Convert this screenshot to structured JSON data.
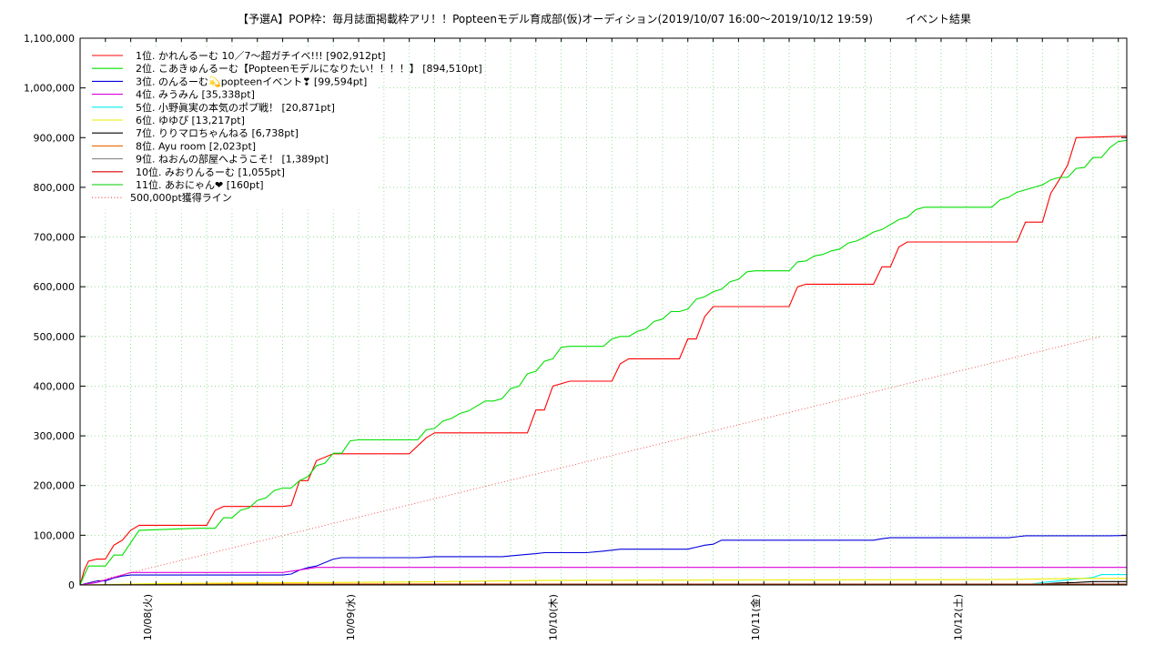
{
  "chart_data": {
    "type": "line",
    "title": "【予選A】POP枠：毎月誌面掲載枠アリ！！Popteenモデル育成部(仮)オーディション(2019/10/07 16:00〜2019/10/12 19:59)　　　イベント結果",
    "xlabel": "",
    "ylabel": "",
    "x_unit": "hours since 2019/10/07 16:00",
    "xlim": [
      0,
      124
    ],
    "ylim": [
      0,
      1100000
    ],
    "y_ticks": [
      0,
      100000,
      200000,
      300000,
      400000,
      500000,
      600000,
      700000,
      800000,
      900000,
      1000000,
      1100000
    ],
    "y_tick_labels": [
      "0",
      "100,000",
      "200,000",
      "300,000",
      "400,000",
      "500,000",
      "600,000",
      "700,000",
      "800,000",
      "900,000",
      "1,000,000",
      "1,100,000"
    ],
    "x_ticks": [
      8,
      32,
      56,
      80,
      104
    ],
    "x_tick_labels": [
      "10/08(火)",
      "10/09(水)",
      "10/10(木)",
      "10/11(金)",
      "10/12(土)"
    ],
    "grid": true,
    "legend_position": "top-left",
    "series": [
      {
        "name": "1位. かれんるーむ 10／7〜超ガチイベ!!! [902,912pt]",
        "color": "#ff0000",
        "x": [
          0,
          0.5,
          1,
          2,
          3,
          4,
          5,
          6,
          7,
          13,
          15,
          16,
          17,
          24,
          25,
          26,
          27,
          28,
          30,
          31,
          32,
          39,
          41,
          42,
          45,
          53,
          54,
          55,
          56,
          58,
          62,
          63,
          64,
          65,
          71,
          72,
          73,
          74,
          75,
          76,
          84,
          85,
          86,
          87,
          94,
          95,
          96,
          97,
          98,
          103,
          111,
          112,
          113,
          114,
          115,
          116,
          117,
          118,
          124
        ],
        "y": [
          0,
          30000,
          48000,
          52000,
          52000,
          80000,
          90000,
          110000,
          120000,
          120000,
          120000,
          150000,
          158000,
          158000,
          160000,
          210000,
          210000,
          250000,
          264000,
          264000,
          264000,
          264000,
          296000,
          306000,
          306000,
          306000,
          352000,
          352000,
          400000,
          410000,
          410000,
          410000,
          445000,
          455000,
          455000,
          495000,
          495000,
          540000,
          560000,
          560000,
          560000,
          600000,
          605000,
          605000,
          605000,
          640000,
          640000,
          680000,
          690000,
          690000,
          690000,
          730000,
          730000,
          730000,
          788000,
          815000,
          845000,
          900000,
          902912
        ]
      },
      {
        "name": "2位. こあきゅんるーむ【Popteenモデルになりたい！！！！】 [894,510pt]",
        "color": "#00e000",
        "x": [
          0,
          0.5,
          1,
          2,
          3,
          4,
          5,
          6,
          7,
          14,
          16,
          17,
          18,
          19,
          20,
          21,
          22,
          23,
          24,
          25,
          26,
          27,
          28,
          29,
          30,
          31,
          32,
          33,
          34,
          35,
          38,
          40,
          41,
          42,
          43,
          44,
          45,
          46,
          47,
          48,
          49,
          50,
          51,
          52,
          53,
          54,
          55,
          56,
          57,
          58,
          59,
          60,
          61,
          62,
          63,
          64,
          65,
          66,
          67,
          68,
          69,
          70,
          71,
          72,
          73,
          74,
          75,
          76,
          77,
          78,
          79,
          80,
          81,
          82,
          83,
          84,
          85,
          86,
          87,
          88,
          89,
          90,
          91,
          92,
          93,
          94,
          95,
          96,
          97,
          98,
          99,
          100,
          101,
          102,
          103,
          104,
          105,
          106,
          107,
          108,
          109,
          110,
          111,
          112,
          113,
          114,
          115,
          116,
          117,
          118,
          119,
          120,
          121,
          122,
          123,
          124
        ],
        "y": [
          0,
          20000,
          38000,
          38000,
          38000,
          60000,
          60000,
          85000,
          110000,
          114000,
          114000,
          135000,
          135000,
          150000,
          155000,
          170000,
          175000,
          190000,
          195000,
          195000,
          210000,
          218000,
          240000,
          245000,
          265000,
          265000,
          290000,
          292000,
          292000,
          292000,
          292000,
          292000,
          312000,
          315000,
          330000,
          335000,
          345000,
          350000,
          360000,
          370000,
          370000,
          375000,
          395000,
          400000,
          425000,
          430000,
          450000,
          455000,
          478000,
          480000,
          480000,
          480000,
          480000,
          480000,
          495000,
          500000,
          500000,
          510000,
          515000,
          530000,
          535000,
          550000,
          550000,
          555000,
          575000,
          580000,
          590000,
          595000,
          610000,
          615000,
          630000,
          632000,
          632000,
          632000,
          632000,
          632000,
          650000,
          652000,
          662000,
          665000,
          672000,
          676000,
          688000,
          692000,
          700000,
          710000,
          715000,
          725000,
          735000,
          740000,
          755000,
          760000,
          760000,
          760000,
          760000,
          760000,
          760000,
          760000,
          760000,
          760000,
          775000,
          780000,
          790000,
          795000,
          800000,
          805000,
          815000,
          820000,
          820000,
          838000,
          840000,
          860000,
          860000,
          880000,
          892000,
          894510
        ]
      },
      {
        "name": "3位. のんるーむ💫popteenイベント❣ [99,594pt]",
        "color": "#0000dd",
        "x": [
          0,
          1,
          2,
          3,
          4,
          5,
          6,
          12,
          18,
          24,
          25,
          26,
          27,
          28,
          30,
          31,
          32,
          33,
          34,
          38,
          40,
          42,
          44,
          46,
          48,
          50,
          52,
          54,
          55,
          56,
          58,
          60,
          62,
          64,
          66,
          68,
          70,
          72,
          73,
          74,
          75,
          76,
          78,
          80,
          82,
          84,
          86,
          88,
          90,
          92,
          94,
          95,
          96,
          98,
          100,
          102,
          104,
          106,
          108,
          110,
          111,
          112,
          114,
          116,
          118,
          120,
          122,
          124
        ],
        "y": [
          0,
          4000,
          8000,
          8000,
          14000,
          18000,
          20000,
          20000,
          20000,
          20000,
          22000,
          30000,
          35000,
          38000,
          52000,
          55000,
          55000,
          55000,
          55000,
          55000,
          55000,
          57000,
          57000,
          57000,
          57000,
          57000,
          60000,
          63000,
          65000,
          65000,
          65000,
          65000,
          68000,
          72000,
          72000,
          72000,
          72000,
          72000,
          76000,
          80000,
          82000,
          90000,
          90000,
          90000,
          90000,
          90000,
          90000,
          90000,
          90000,
          90000,
          90000,
          93000,
          95000,
          95000,
          95000,
          95000,
          95000,
          95000,
          95000,
          95000,
          97000,
          99000,
          99000,
          99000,
          99000,
          99000,
          99000,
          99594
        ]
      },
      {
        "name": "4位. みうみん [35,338pt]",
        "color": "#dd00dd",
        "x": [
          0,
          2,
          3,
          4,
          5,
          6,
          24,
          26,
          28,
          124
        ],
        "y": [
          0,
          5000,
          10000,
          15000,
          20000,
          25000,
          25000,
          30000,
          35338,
          35338
        ]
      },
      {
        "name": "5位. 小野眞実の本気のポプ戦！ [20,871pt]",
        "color": "#00eeee",
        "x": [
          0,
          112,
          114,
          116,
          118,
          120,
          121,
          124
        ],
        "y": [
          0,
          0,
          5000,
          8000,
          12000,
          15000,
          20871,
          20871
        ]
      },
      {
        "name": "6位. ゆゆぴ [13,217pt]",
        "color": "#eeee00",
        "x": [
          0,
          10,
          40,
          54,
          80,
          110,
          118,
          124
        ],
        "y": [
          0,
          3000,
          6000,
          9000,
          10000,
          11000,
          13217,
          13217
        ]
      },
      {
        "name": "7位. りりマロちゃんねる [6,738pt]",
        "color": "#000000",
        "x": [
          0,
          110,
          114,
          116,
          118,
          120,
          124
        ],
        "y": [
          0,
          0,
          2000,
          4000,
          5000,
          6738,
          6738
        ]
      },
      {
        "name": "8位. Ayu room [2,023pt]",
        "color": "#ee6600",
        "x": [
          0,
          20,
          124
        ],
        "y": [
          0,
          2023,
          2023
        ]
      },
      {
        "name": "9位. ねおんの部屋へようこそ！ [1,389pt]",
        "color": "#888888",
        "x": [
          0,
          60,
          124
        ],
        "y": [
          0,
          1389,
          1389
        ]
      },
      {
        "name": "10位. みおりんるーむ [1,055pt]",
        "color": "#dd0000",
        "x": [
          0,
          40,
          124
        ],
        "y": [
          0,
          1055,
          1055
        ]
      },
      {
        "name": "11位. あおにゃん❤ [160pt]",
        "color": "#00cc00",
        "x": [
          0,
          10,
          124
        ],
        "y": [
          0,
          160,
          160
        ]
      },
      {
        "name": "500,000pt獲得ライン",
        "color": "#ee4444",
        "dotted": true,
        "x": [
          0,
          121
        ],
        "y": [
          0,
          500000
        ]
      }
    ]
  }
}
